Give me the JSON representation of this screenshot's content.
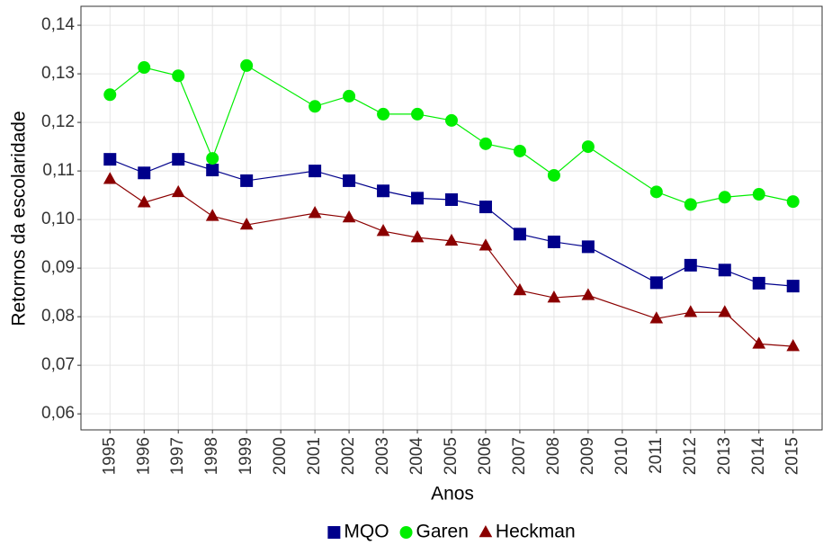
{
  "chart_data": {
    "type": "line",
    "x_label": "Anos",
    "y_label": "Retornos da escolaridade",
    "x": [
      1995,
      1996,
      1997,
      1998,
      1999,
      2001,
      2002,
      2003,
      2004,
      2005,
      2006,
      2007,
      2008,
      2009,
      2011,
      2012,
      2013,
      2014,
      2015
    ],
    "series": [
      {
        "name": "MQO",
        "color": "#00008b",
        "marker": "square",
        "values": [
          0.1124,
          0.1096,
          0.1124,
          0.1102,
          0.108,
          0.11,
          0.108,
          0.1059,
          0.1044,
          0.1041,
          0.1026,
          0.097,
          0.0954,
          0.0944,
          0.087,
          0.0906,
          0.0896,
          0.0869,
          0.0863
        ]
      },
      {
        "name": "Garen",
        "color": "#00ee00",
        "marker": "circle",
        "values": [
          0.1257,
          0.1313,
          0.1296,
          0.1126,
          0.1317,
          0.1233,
          0.1254,
          0.1217,
          0.1217,
          0.1204,
          0.1156,
          0.1141,
          0.1091,
          0.115,
          0.1057,
          0.1031,
          0.1046,
          0.1052,
          0.1037
        ]
      },
      {
        "name": "Heckman",
        "color": "#8b0000",
        "marker": "triangle",
        "values": [
          0.1083,
          0.1035,
          0.1056,
          0.1007,
          0.0989,
          0.1013,
          0.1004,
          0.0976,
          0.0963,
          0.0956,
          0.0946,
          0.0854,
          0.0839,
          0.0844,
          0.0796,
          0.0809,
          0.0809,
          0.0744,
          0.0739
        ]
      }
    ],
    "xlim": [
      1994.15,
      2015.85
    ],
    "xticks": [
      1995,
      1996,
      1997,
      1998,
      1999,
      2000,
      2001,
      2002,
      2003,
      2004,
      2005,
      2006,
      2007,
      2008,
      2009,
      2010,
      2011,
      2012,
      2013,
      2014,
      2015
    ],
    "ylim": [
      0.0567,
      0.1439
    ],
    "yticks": [
      {
        "value": 0.06,
        "label": "0,06"
      },
      {
        "value": 0.07,
        "label": "0,07"
      },
      {
        "value": 0.08,
        "label": "0,08"
      },
      {
        "value": 0.09,
        "label": "0,09"
      },
      {
        "value": 0.1,
        "label": "0,10"
      },
      {
        "value": 0.11,
        "label": "0,11"
      },
      {
        "value": 0.12,
        "label": "0,12"
      },
      {
        "value": 0.13,
        "label": "0,13"
      },
      {
        "value": 0.14,
        "label": "0,14"
      }
    ],
    "grid": true,
    "legend": "bottom"
  }
}
